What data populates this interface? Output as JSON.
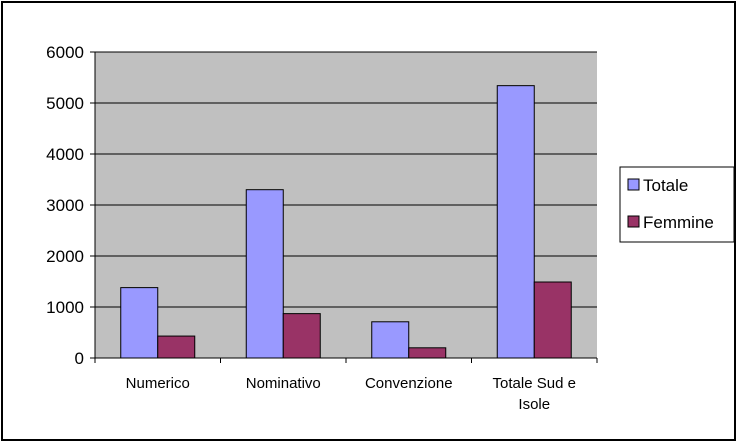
{
  "chart_data": {
    "type": "bar",
    "categories": [
      [
        "Numerico"
      ],
      [
        "Nominativo"
      ],
      [
        "Convenzione"
      ],
      [
        "Totale Sud e",
        "Isole"
      ]
    ],
    "series": [
      {
        "name": "Totale",
        "values": [
          1380,
          3300,
          710,
          5340
        ],
        "color": "#9999ff"
      },
      {
        "name": "Femmine",
        "values": [
          430,
          870,
          200,
          1490
        ],
        "color": "#993366"
      }
    ],
    "yticks": [
      "0",
      "1000",
      "2000",
      "3000",
      "4000",
      "5000",
      "6000"
    ],
    "ylim": [
      0,
      6000
    ],
    "grid": true,
    "legend": "right",
    "plot_background": "#c0c0c0"
  }
}
